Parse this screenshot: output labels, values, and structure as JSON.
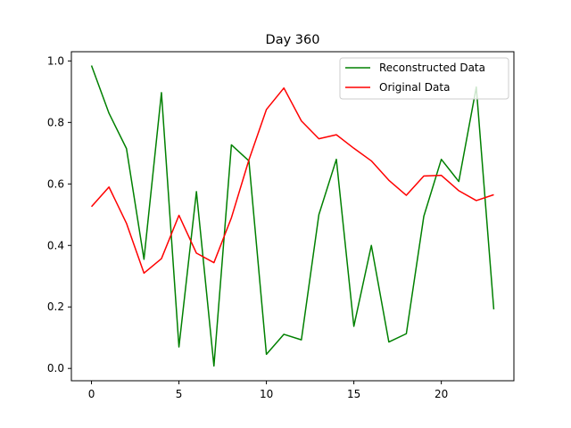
{
  "chart_data": {
    "type": "line",
    "title": "Day 360",
    "xlabel": "",
    "ylabel": "",
    "xlim": [
      -1.15,
      24.15
    ],
    "ylim": [
      -0.04,
      1.03
    ],
    "xticks": [
      0,
      5,
      10,
      15,
      20
    ],
    "yticks": [
      0.0,
      0.2,
      0.4,
      0.6,
      0.8,
      1.0
    ],
    "grid": false,
    "legend_position": "upper right",
    "x": [
      0,
      1,
      2,
      3,
      4,
      5,
      6,
      7,
      8,
      9,
      10,
      11,
      12,
      13,
      14,
      15,
      16,
      17,
      18,
      19,
      20,
      21,
      22,
      23
    ],
    "series": [
      {
        "name": "Reconstructed Data",
        "color": "#008000",
        "values": [
          0.985,
          0.83,
          0.715,
          0.355,
          0.897,
          0.07,
          0.575,
          0.008,
          0.727,
          0.675,
          0.046,
          0.111,
          0.093,
          0.5,
          0.68,
          0.137,
          0.4,
          0.086,
          0.113,
          0.495,
          0.68,
          0.608,
          0.915,
          0.192
        ]
      },
      {
        "name": "Original Data",
        "color": "#ff0000",
        "values": [
          0.526,
          0.59,
          0.472,
          0.31,
          0.357,
          0.498,
          0.375,
          0.344,
          0.49,
          0.678,
          0.842,
          0.912,
          0.805,
          0.747,
          0.76,
          0.716,
          0.675,
          0.612,
          0.563,
          0.626,
          0.628,
          0.578,
          0.546,
          0.565
        ]
      }
    ]
  }
}
